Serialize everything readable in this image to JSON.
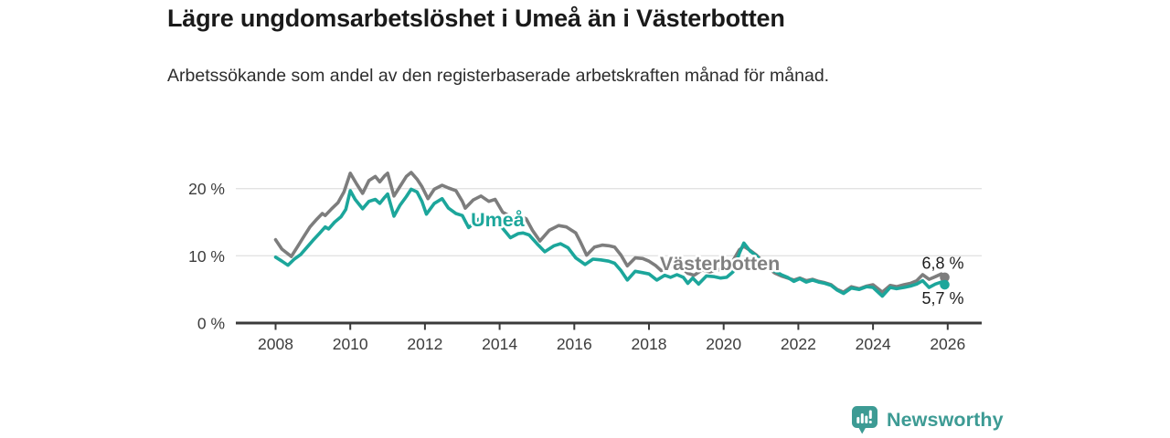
{
  "header": {
    "title": "Lägre ungdomsarbetslöshet i Umeå än i Västerbotten",
    "subtitle": "Arbetssökande som andel av den registerbaserade arbetskraften månad för månad."
  },
  "footer": {
    "brand": "Newsworthy",
    "logo_icon": "bar-chart-speech-bubble-icon",
    "brand_color": "#3d9b94"
  },
  "chart_data": {
    "type": "line",
    "title": "Lägre ungdomsarbetslöshet i Umeå än i Västerbotten",
    "xlabel": "",
    "ylabel": "",
    "x_unit": "year, monthly observations",
    "xlim": [
      2006.9,
      2026.9
    ],
    "ylim": [
      0,
      24
    ],
    "grid": "horizontal",
    "legend_position": "inline-labels",
    "x_ticks": [
      2008,
      2010,
      2012,
      2014,
      2016,
      2018,
      2020,
      2022,
      2024,
      2026
    ],
    "y_ticks": [
      {
        "value": 0,
        "label": "0 %"
      },
      {
        "value": 10,
        "label": "10 %"
      },
      {
        "value": 20,
        "label": "20 %"
      }
    ],
    "annotations": [
      {
        "text": "Umeå",
        "x": 2013.23,
        "y": 14.4,
        "color": "#1ca69b"
      },
      {
        "text": "Västerbotten",
        "x": 2018.29,
        "y": 7.9,
        "color": "#808080"
      }
    ],
    "series": [
      {
        "name": "Västerbotten",
        "color": "#7d7d7d",
        "end_label": "6,8 %",
        "end_label_position": "above",
        "points": [
          [
            2008.0,
            12.4
          ],
          [
            2008.17,
            11.0
          ],
          [
            2008.42,
            9.9
          ],
          [
            2008.58,
            11.3
          ],
          [
            2008.75,
            12.8
          ],
          [
            2008.92,
            14.3
          ],
          [
            2009.08,
            15.3
          ],
          [
            2009.25,
            16.3
          ],
          [
            2009.33,
            16.0
          ],
          [
            2009.5,
            17.0
          ],
          [
            2009.67,
            17.9
          ],
          [
            2009.83,
            19.5
          ],
          [
            2010.0,
            22.3
          ],
          [
            2010.17,
            20.7
          ],
          [
            2010.33,
            19.3
          ],
          [
            2010.5,
            21.2
          ],
          [
            2010.67,
            21.8
          ],
          [
            2010.79,
            21.0
          ],
          [
            2010.92,
            21.9
          ],
          [
            2011.0,
            22.3
          ],
          [
            2011.17,
            18.9
          ],
          [
            2011.33,
            20.3
          ],
          [
            2011.5,
            21.8
          ],
          [
            2011.63,
            22.4
          ],
          [
            2011.79,
            21.4
          ],
          [
            2011.92,
            20.3
          ],
          [
            2012.08,
            18.5
          ],
          [
            2012.25,
            19.9
          ],
          [
            2012.46,
            20.5
          ],
          [
            2012.63,
            20.1
          ],
          [
            2012.83,
            19.7
          ],
          [
            2013.0,
            18.1
          ],
          [
            2013.08,
            17.1
          ],
          [
            2013.29,
            18.3
          ],
          [
            2013.5,
            18.9
          ],
          [
            2013.71,
            18.1
          ],
          [
            2013.88,
            18.4
          ],
          [
            2014.08,
            16.5
          ],
          [
            2014.21,
            16.1
          ],
          [
            2014.33,
            15.7
          ],
          [
            2014.5,
            16.0
          ],
          [
            2014.71,
            15.5
          ],
          [
            2014.88,
            13.8
          ],
          [
            2015.08,
            12.2
          ],
          [
            2015.33,
            13.8
          ],
          [
            2015.58,
            14.5
          ],
          [
            2015.79,
            14.3
          ],
          [
            2016.04,
            13.4
          ],
          [
            2016.17,
            12.0
          ],
          [
            2016.33,
            10.1
          ],
          [
            2016.54,
            11.3
          ],
          [
            2016.75,
            11.6
          ],
          [
            2016.92,
            11.5
          ],
          [
            2017.08,
            11.3
          ],
          [
            2017.25,
            10.1
          ],
          [
            2017.42,
            8.5
          ],
          [
            2017.63,
            9.7
          ],
          [
            2017.83,
            9.6
          ],
          [
            2018.0,
            9.2
          ],
          [
            2018.17,
            8.6
          ],
          [
            2018.33,
            7.8
          ],
          [
            2018.5,
            8.3
          ],
          [
            2018.71,
            8.5
          ],
          [
            2018.88,
            8.2
          ],
          [
            2019.04,
            7.4
          ],
          [
            2019.21,
            7.1
          ],
          [
            2019.42,
            7.9
          ],
          [
            2019.63,
            7.6
          ],
          [
            2019.83,
            7.9
          ],
          [
            2020.04,
            8.1
          ],
          [
            2020.21,
            8.9
          ],
          [
            2020.42,
            10.9
          ],
          [
            2020.54,
            11.4
          ],
          [
            2020.71,
            10.8
          ],
          [
            2020.88,
            10.1
          ],
          [
            2021.04,
            9.2
          ],
          [
            2021.21,
            8.1
          ],
          [
            2021.38,
            7.4
          ],
          [
            2021.54,
            7.0
          ],
          [
            2021.71,
            6.7
          ],
          [
            2021.88,
            6.4
          ],
          [
            2022.04,
            6.7
          ],
          [
            2022.21,
            6.3
          ],
          [
            2022.38,
            6.5
          ],
          [
            2022.54,
            6.2
          ],
          [
            2022.71,
            6.0
          ],
          [
            2022.88,
            5.7
          ],
          [
            2023.04,
            5.0
          ],
          [
            2023.21,
            4.6
          ],
          [
            2023.42,
            5.4
          ],
          [
            2023.63,
            5.1
          ],
          [
            2023.83,
            5.5
          ],
          [
            2024.0,
            5.7
          ],
          [
            2024.25,
            4.6
          ],
          [
            2024.46,
            5.6
          ],
          [
            2024.63,
            5.4
          ],
          [
            2024.83,
            5.7
          ],
          [
            2025.0,
            5.9
          ],
          [
            2025.17,
            6.3
          ],
          [
            2025.33,
            7.2
          ],
          [
            2025.5,
            6.5
          ],
          [
            2025.67,
            6.9
          ],
          [
            2025.83,
            7.3
          ],
          [
            2025.92,
            6.8
          ]
        ]
      },
      {
        "name": "Umeå",
        "color": "#1ca69b",
        "end_label": "5,7 %",
        "end_label_position": "below",
        "points": [
          [
            2008.0,
            9.8
          ],
          [
            2008.17,
            9.2
          ],
          [
            2008.33,
            8.6
          ],
          [
            2008.5,
            9.5
          ],
          [
            2008.67,
            10.2
          ],
          [
            2008.83,
            11.2
          ],
          [
            2009.0,
            12.3
          ],
          [
            2009.17,
            13.3
          ],
          [
            2009.33,
            14.3
          ],
          [
            2009.42,
            14.0
          ],
          [
            2009.58,
            15.0
          ],
          [
            2009.75,
            15.8
          ],
          [
            2009.88,
            16.9
          ],
          [
            2010.0,
            19.7
          ],
          [
            2010.13,
            18.4
          ],
          [
            2010.33,
            17.0
          ],
          [
            2010.5,
            18.1
          ],
          [
            2010.67,
            18.4
          ],
          [
            2010.79,
            17.8
          ],
          [
            2010.92,
            18.7
          ],
          [
            2011.0,
            19.2
          ],
          [
            2011.17,
            15.9
          ],
          [
            2011.33,
            17.5
          ],
          [
            2011.5,
            18.8
          ],
          [
            2011.63,
            19.9
          ],
          [
            2011.79,
            19.5
          ],
          [
            2011.92,
            18.1
          ],
          [
            2012.04,
            16.2
          ],
          [
            2012.25,
            17.8
          ],
          [
            2012.46,
            18.5
          ],
          [
            2012.63,
            17.1
          ],
          [
            2012.83,
            16.3
          ],
          [
            2013.0,
            16.0
          ],
          [
            2013.17,
            14.2
          ],
          [
            2013.42,
            15.4
          ],
          [
            2013.58,
            15.7
          ],
          [
            2013.79,
            15.0
          ],
          [
            2013.92,
            14.9
          ],
          [
            2014.08,
            14.1
          ],
          [
            2014.29,
            12.7
          ],
          [
            2014.5,
            13.3
          ],
          [
            2014.63,
            13.4
          ],
          [
            2014.79,
            13.1
          ],
          [
            2015.0,
            11.8
          ],
          [
            2015.21,
            10.6
          ],
          [
            2015.46,
            11.5
          ],
          [
            2015.63,
            11.8
          ],
          [
            2015.83,
            11.2
          ],
          [
            2016.04,
            9.7
          ],
          [
            2016.29,
            8.7
          ],
          [
            2016.5,
            9.5
          ],
          [
            2016.71,
            9.4
          ],
          [
            2016.92,
            9.2
          ],
          [
            2017.08,
            8.9
          ],
          [
            2017.25,
            7.8
          ],
          [
            2017.42,
            6.4
          ],
          [
            2017.63,
            7.7
          ],
          [
            2017.83,
            7.5
          ],
          [
            2018.0,
            7.3
          ],
          [
            2018.21,
            6.4
          ],
          [
            2018.42,
            7.1
          ],
          [
            2018.58,
            6.8
          ],
          [
            2018.75,
            7.2
          ],
          [
            2018.92,
            6.8
          ],
          [
            2019.04,
            5.9
          ],
          [
            2019.17,
            6.7
          ],
          [
            2019.33,
            5.8
          ],
          [
            2019.54,
            7.0
          ],
          [
            2019.75,
            6.9
          ],
          [
            2019.92,
            6.7
          ],
          [
            2020.08,
            6.8
          ],
          [
            2020.25,
            7.6
          ],
          [
            2020.42,
            10.4
          ],
          [
            2020.54,
            11.9
          ],
          [
            2020.71,
            10.7
          ],
          [
            2020.88,
            10.0
          ],
          [
            2021.04,
            8.9
          ],
          [
            2021.21,
            8.0
          ],
          [
            2021.38,
            7.7
          ],
          [
            2021.54,
            7.2
          ],
          [
            2021.71,
            6.8
          ],
          [
            2021.88,
            6.2
          ],
          [
            2022.04,
            6.6
          ],
          [
            2022.21,
            6.1
          ],
          [
            2022.38,
            6.4
          ],
          [
            2022.54,
            6.1
          ],
          [
            2022.71,
            5.9
          ],
          [
            2022.88,
            5.6
          ],
          [
            2023.04,
            4.9
          ],
          [
            2023.21,
            4.4
          ],
          [
            2023.42,
            5.2
          ],
          [
            2023.63,
            5.0
          ],
          [
            2023.83,
            5.4
          ],
          [
            2024.0,
            5.3
          ],
          [
            2024.25,
            4.0
          ],
          [
            2024.46,
            5.3
          ],
          [
            2024.63,
            5.1
          ],
          [
            2024.83,
            5.3
          ],
          [
            2025.0,
            5.5
          ],
          [
            2025.17,
            5.8
          ],
          [
            2025.33,
            6.3
          ],
          [
            2025.5,
            5.3
          ],
          [
            2025.67,
            5.8
          ],
          [
            2025.83,
            6.1
          ],
          [
            2025.92,
            5.7
          ]
        ]
      }
    ]
  }
}
